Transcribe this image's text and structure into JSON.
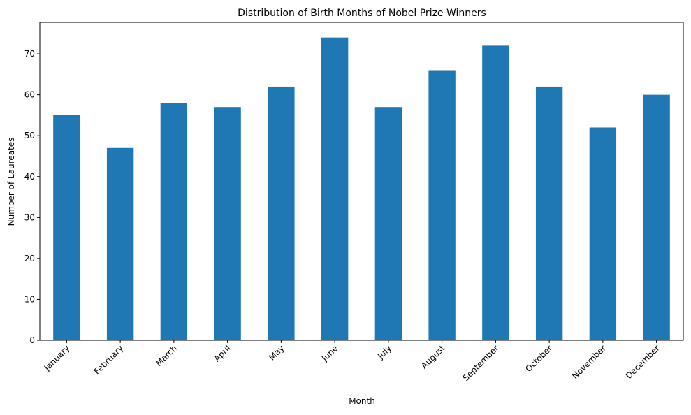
{
  "chart_data": {
    "type": "bar",
    "title": "Distribution of Birth Months of Nobel Prize Winners",
    "xlabel": "Month",
    "ylabel": "Number of Laureates",
    "categories": [
      "January",
      "February",
      "March",
      "April",
      "May",
      "June",
      "July",
      "August",
      "September",
      "October",
      "November",
      "December"
    ],
    "values": [
      55,
      47,
      58,
      57,
      62,
      74,
      57,
      66,
      72,
      62,
      52,
      60
    ],
    "ylim": [
      0,
      77.7
    ],
    "yticks": [
      0,
      10,
      20,
      30,
      40,
      50,
      60,
      70
    ],
    "bar_color": "#1f77b4",
    "grid": false,
    "legend": "none",
    "xtick_rotation": 45
  }
}
